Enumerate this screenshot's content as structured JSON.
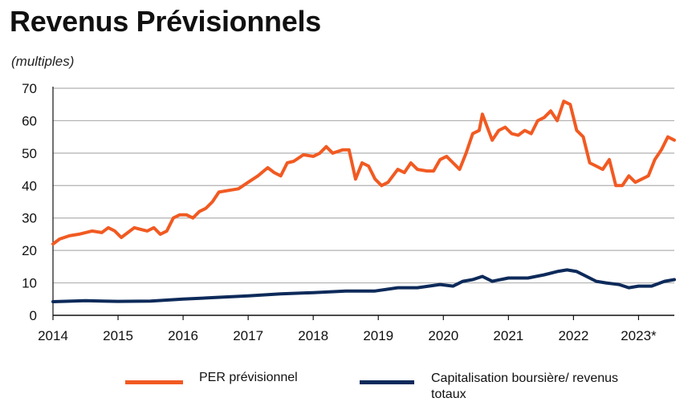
{
  "title": "Revenus Prévisionnels",
  "subtitle": "(multiples)",
  "colors": {
    "per": "#f15a22",
    "cap": "#0d2a5a",
    "grid": "#b0b0b0"
  },
  "chart_data": {
    "type": "line",
    "title": "Revenus Prévisionnels",
    "subtitle": "(multiples)",
    "ylim": [
      0,
      70
    ],
    "yticks": [
      "0",
      "10",
      "20",
      "30",
      "40",
      "50",
      "60",
      "70"
    ],
    "xlim": [
      2014.0,
      2023.55
    ],
    "xticks": [
      "2014",
      "2015",
      "2016",
      "2017",
      "2018",
      "2019",
      "2020",
      "2021",
      "2022",
      "2023*"
    ],
    "grid": true,
    "legend_position": "bottom",
    "series": [
      {
        "name": "PER prévisionnel",
        "color": "#f15a22",
        "x": [
          2014.0,
          2014.1,
          2014.25,
          2014.4,
          2014.5,
          2014.6,
          2014.75,
          2014.85,
          2014.95,
          2015.05,
          2015.15,
          2015.25,
          2015.35,
          2015.45,
          2015.55,
          2015.65,
          2015.75,
          2015.85,
          2015.95,
          2016.05,
          2016.15,
          2016.25,
          2016.35,
          2016.45,
          2016.55,
          2016.7,
          2016.85,
          2017.0,
          2017.15,
          2017.3,
          2017.4,
          2017.5,
          2017.6,
          2017.7,
          2017.85,
          2018.0,
          2018.1,
          2018.2,
          2018.3,
          2018.45,
          2018.55,
          2018.65,
          2018.75,
          2018.85,
          2018.95,
          2019.05,
          2019.15,
          2019.3,
          2019.4,
          2019.5,
          2019.6,
          2019.75,
          2019.85,
          2019.95,
          2020.05,
          2020.15,
          2020.25,
          2020.35,
          2020.45,
          2020.55,
          2020.6,
          2020.75,
          2020.85,
          2020.95,
          2021.05,
          2021.15,
          2021.25,
          2021.35,
          2021.45,
          2021.55,
          2021.65,
          2021.75,
          2021.85,
          2021.95,
          2022.05,
          2022.15,
          2022.25,
          2022.35,
          2022.45,
          2022.55,
          2022.65,
          2022.75,
          2022.85,
          2022.95,
          2023.05,
          2023.15,
          2023.25,
          2023.35,
          2023.45,
          2023.55
        ],
        "values": [
          22,
          23.5,
          24.5,
          25,
          25.5,
          26,
          25.5,
          27,
          26,
          24,
          25.5,
          27,
          26.5,
          26,
          27,
          25,
          26,
          30,
          31,
          31,
          30,
          32,
          33,
          35,
          38,
          38.5,
          39,
          41,
          43,
          45.5,
          44,
          43,
          47,
          47.5,
          49.5,
          49,
          50,
          52,
          50,
          51,
          51,
          42,
          47,
          46,
          42,
          40,
          41,
          45,
          44,
          47,
          45,
          44.5,
          44.5,
          48,
          49,
          47,
          45,
          50,
          56,
          57,
          62,
          54,
          57,
          58,
          56,
          55.5,
          57,
          56,
          60,
          61,
          63,
          60,
          66,
          65,
          57,
          55,
          47,
          46,
          45,
          48,
          40,
          40,
          43,
          41,
          42,
          43,
          48,
          51,
          55,
          54
        ]
      },
      {
        "name": "Capitalisation boursière/ revenus totaux",
        "color": "#0d2a5a",
        "x": [
          2014.0,
          2014.5,
          2015.0,
          2015.5,
          2016.0,
          2016.5,
          2017.0,
          2017.5,
          2018.0,
          2018.5,
          2018.95,
          2019.3,
          2019.6,
          2019.95,
          2020.15,
          2020.3,
          2020.45,
          2020.6,
          2020.75,
          2021.0,
          2021.3,
          2021.55,
          2021.75,
          2021.9,
          2022.05,
          2022.2,
          2022.35,
          2022.5,
          2022.7,
          2022.85,
          2023.0,
          2023.2,
          2023.4,
          2023.55
        ],
        "values": [
          4.2,
          4.5,
          4.3,
          4.4,
          5,
          5.5,
          6,
          6.6,
          7,
          7.5,
          7.5,
          8.5,
          8.5,
          9.5,
          9,
          10.5,
          11,
          12,
          10.5,
          11.5,
          11.5,
          12.5,
          13.5,
          14,
          13.5,
          12,
          10.5,
          10,
          9.5,
          8.5,
          9,
          9,
          10.5,
          11
        ]
      }
    ]
  }
}
